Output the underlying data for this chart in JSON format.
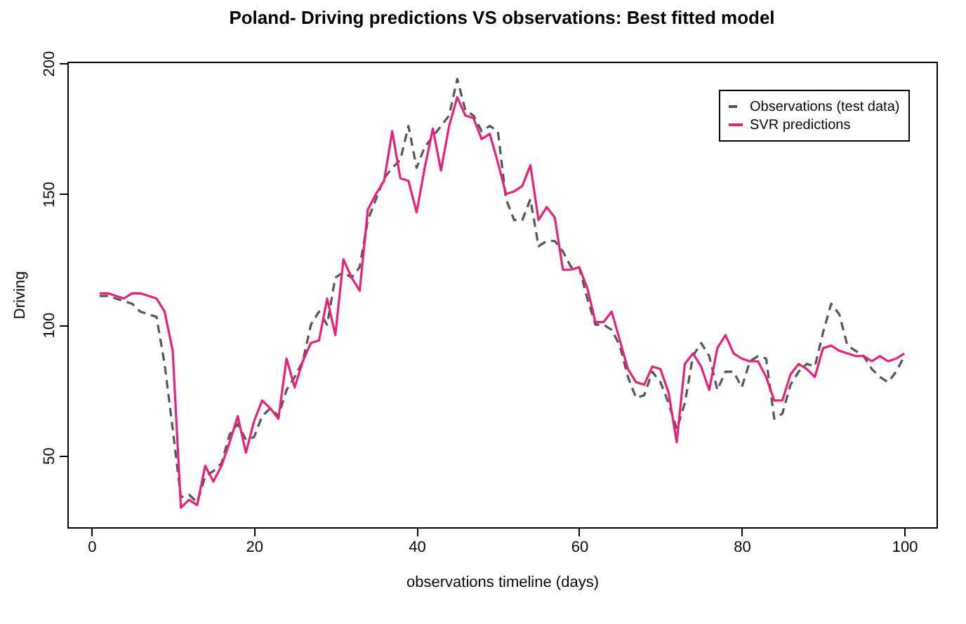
{
  "chart_data": {
    "type": "line",
    "title": "Poland- Driving predictions VS observations: Best fitted model",
    "xlabel": "observations timeline (days)",
    "ylabel": "Driving",
    "x": [
      1,
      2,
      3,
      4,
      5,
      6,
      7,
      8,
      9,
      10,
      11,
      12,
      13,
      14,
      15,
      16,
      17,
      18,
      19,
      20,
      21,
      22,
      23,
      24,
      25,
      26,
      27,
      28,
      29,
      30,
      31,
      32,
      33,
      34,
      35,
      36,
      37,
      38,
      39,
      40,
      41,
      42,
      43,
      44,
      45,
      46,
      47,
      48,
      49,
      50,
      51,
      52,
      53,
      54,
      55,
      56,
      57,
      58,
      59,
      60,
      61,
      62,
      63,
      64,
      65,
      66,
      67,
      68,
      69,
      70,
      71,
      72,
      73,
      74,
      75,
      76,
      77,
      78,
      79,
      80,
      81,
      82,
      83,
      84,
      85,
      86,
      87,
      88,
      89,
      90,
      91,
      92,
      93,
      94,
      95,
      96,
      97,
      98,
      99,
      100
    ],
    "series": [
      {
        "name": "Observations (test data)",
        "color": "#555555",
        "line_style": "dashed",
        "values": [
          111,
          111,
          110,
          109,
          108,
          105,
          104,
          103,
          85,
          60,
          34,
          35,
          32,
          42,
          44,
          47,
          58,
          62,
          56,
          57,
          65,
          68,
          65,
          75,
          80,
          86,
          100,
          105,
          100,
          118,
          120,
          118,
          122,
          140,
          148,
          156,
          160,
          163,
          176,
          160,
          168,
          172,
          176,
          180,
          194,
          182,
          180,
          174,
          176,
          174,
          148,
          140,
          140,
          148,
          130,
          132,
          132,
          128,
          122,
          122,
          110,
          100,
          100,
          98,
          92,
          80,
          72,
          73,
          82,
          78,
          70,
          60,
          70,
          88,
          93,
          88,
          75,
          82,
          82,
          76,
          86,
          88,
          87,
          64,
          66,
          77,
          82,
          85,
          84,
          97,
          108,
          104,
          92,
          90,
          88,
          83,
          80,
          78,
          82,
          88
        ]
      },
      {
        "name": "SVR predictions",
        "color": "#e8207a",
        "line_style": "solid",
        "values": [
          112,
          112,
          111,
          110,
          112,
          112,
          111,
          110,
          105,
          90,
          30,
          33,
          31,
          46,
          40,
          46,
          55,
          65,
          51,
          63,
          71,
          68,
          64,
          87,
          76,
          86,
          93,
          94,
          110,
          96,
          125,
          118,
          113,
          144,
          150,
          155,
          174,
          156,
          155,
          143,
          160,
          175,
          159,
          176,
          187,
          180,
          179,
          171,
          173,
          162,
          150,
          151,
          153,
          161,
          140,
          145,
          141,
          121,
          121,
          122,
          114,
          101,
          101,
          105,
          94,
          83,
          78,
          77,
          84,
          83,
          74,
          55,
          85,
          89,
          84,
          75,
          91,
          96,
          89,
          87,
          86,
          86,
          80,
          71,
          71,
          81,
          85,
          83,
          80,
          91,
          92,
          90,
          89,
          88,
          88,
          86,
          88,
          86,
          87,
          89
        ]
      }
    ],
    "xlim": [
      -2.96,
      103.96
    ],
    "ylim": [
      22.5,
      200.6
    ],
    "xticks": [
      0,
      20,
      40,
      60,
      80,
      100
    ],
    "yticks": [
      50,
      100,
      150,
      200
    ],
    "legend": "top right"
  }
}
